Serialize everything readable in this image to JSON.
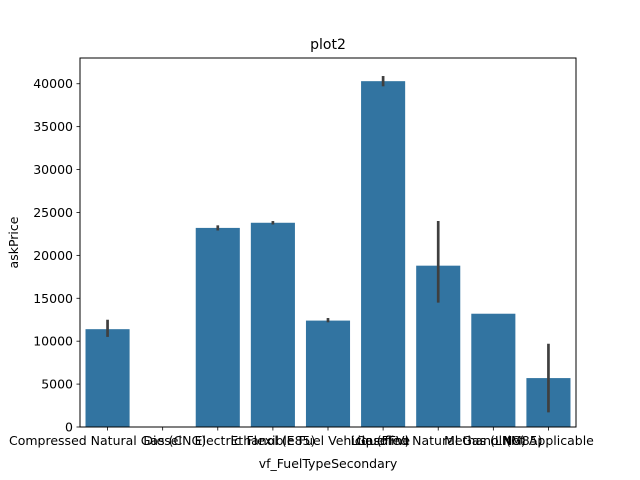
{
  "chart_data": {
    "type": "bar",
    "title": "plot2",
    "xlabel": "vf_FuelTypeSecondary",
    "ylabel": "askPrice",
    "ylim": [
      0,
      43000
    ],
    "yticks": [
      0,
      5000,
      10000,
      15000,
      20000,
      25000,
      30000,
      35000,
      40000
    ],
    "categories": [
      "Compressed Natural Gas (CNG)",
      "Diesel",
      "Electric",
      "Ethanol (E85)",
      "Flexible Fuel Vehicle (FFV)",
      "Gasoline",
      "Liquefied Natural Gas (LNG)",
      "Methanol (M85)",
      "Not Applicable"
    ],
    "values": [
      11400,
      0,
      23200,
      23800,
      12400,
      40300,
      18800,
      13200,
      5700
    ],
    "error_low": [
      10500,
      0,
      22900,
      23600,
      12200,
      39700,
      14500,
      13200,
      1700
    ],
    "error_high": [
      12500,
      0,
      23500,
      24000,
      12700,
      40900,
      24000,
      13200,
      9700
    ],
    "colors": {
      "bar": "#3274a1",
      "errorbar": "#3f3f3f",
      "axis": "#000000"
    },
    "grid": false,
    "legend": "none"
  }
}
